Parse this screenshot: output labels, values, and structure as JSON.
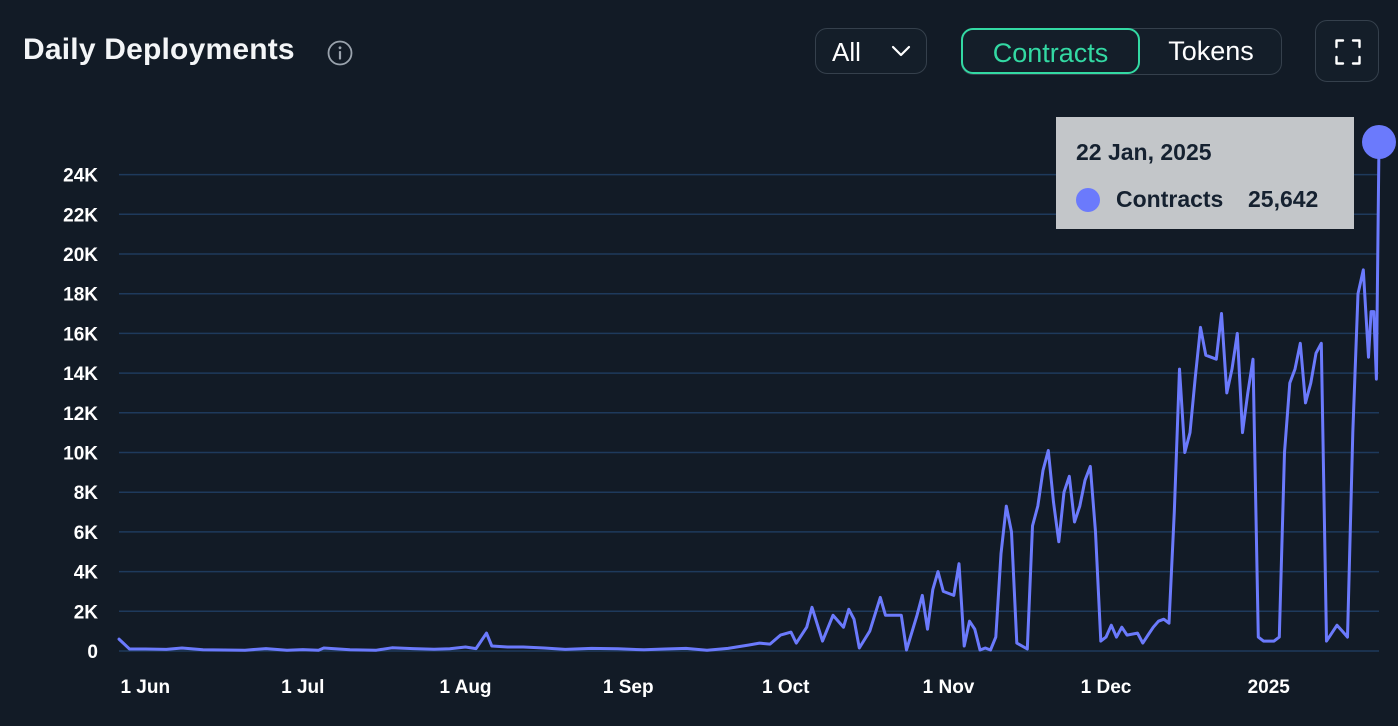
{
  "header": {
    "title": "Daily Deployments",
    "info_icon": "info-icon",
    "filter": {
      "selected": "All",
      "icon": "chevron-down-icon"
    },
    "toggle": {
      "active": "Contracts",
      "inactive": "Tokens"
    },
    "fullscreen_icon": "fullscreen-icon"
  },
  "tooltip": {
    "date": "22 Jan, 2025",
    "series": "Contracts",
    "value_label": "25,642"
  },
  "colors": {
    "background": "#121b26",
    "line": "#6b7afc",
    "grid": "#1e3a5c",
    "accent": "#33d9a3",
    "tooltip_bg": "#c3c6c9"
  },
  "chart_data": {
    "type": "line",
    "x_start": "2024-05-27",
    "x_end": "2025-01-22",
    "x_tick_labels": [
      {
        "date": "2024-06-01",
        "label": "1 Jun"
      },
      {
        "date": "2024-07-01",
        "label": "1 Jul"
      },
      {
        "date": "2024-08-01",
        "label": "1 Aug"
      },
      {
        "date": "2024-09-01",
        "label": "1 Sep"
      },
      {
        "date": "2024-10-01",
        "label": "1 Oct"
      },
      {
        "date": "2024-11-01",
        "label": "1 Nov"
      },
      {
        "date": "2024-12-01",
        "label": "1 Dec"
      },
      {
        "date": "2025-01-01",
        "label": "2025"
      }
    ],
    "y_ticks": [
      {
        "value": 0,
        "label": "0"
      },
      {
        "value": 2000,
        "label": "2K"
      },
      {
        "value": 4000,
        "label": "4K"
      },
      {
        "value": 6000,
        "label": "6K"
      },
      {
        "value": 8000,
        "label": "8K"
      },
      {
        "value": 10000,
        "label": "10K"
      },
      {
        "value": 12000,
        "label": "12K"
      },
      {
        "value": 14000,
        "label": "14K"
      },
      {
        "value": 16000,
        "label": "16K"
      },
      {
        "value": 18000,
        "label": "18K"
      },
      {
        "value": 20000,
        "label": "20K"
      },
      {
        "value": 22000,
        "label": "22K"
      },
      {
        "value": 24000,
        "label": "24K"
      }
    ],
    "ylim": [
      0,
      25642
    ],
    "grid": true,
    "legend": "none",
    "series": [
      {
        "name": "Contracts",
        "points": [
          [
            "2024-05-27",
            600
          ],
          [
            "2024-05-29",
            100
          ],
          [
            "2024-06-01",
            100
          ],
          [
            "2024-06-05",
            80
          ],
          [
            "2024-06-08",
            150
          ],
          [
            "2024-06-12",
            60
          ],
          [
            "2024-06-16",
            50
          ],
          [
            "2024-06-20",
            40
          ],
          [
            "2024-06-24",
            120
          ],
          [
            "2024-06-28",
            40
          ],
          [
            "2024-07-01",
            70
          ],
          [
            "2024-07-04",
            40
          ],
          [
            "2024-07-05",
            150
          ],
          [
            "2024-07-10",
            60
          ],
          [
            "2024-07-15",
            40
          ],
          [
            "2024-07-18",
            160
          ],
          [
            "2024-07-22",
            120
          ],
          [
            "2024-07-26",
            90
          ],
          [
            "2024-07-29",
            110
          ],
          [
            "2024-08-01",
            200
          ],
          [
            "2024-08-03",
            120
          ],
          [
            "2024-08-05",
            900
          ],
          [
            "2024-08-06",
            250
          ],
          [
            "2024-08-09",
            200
          ],
          [
            "2024-08-12",
            200
          ],
          [
            "2024-08-16",
            150
          ],
          [
            "2024-08-20",
            80
          ],
          [
            "2024-08-25",
            130
          ],
          [
            "2024-08-30",
            110
          ],
          [
            "2024-09-04",
            60
          ],
          [
            "2024-09-08",
            100
          ],
          [
            "2024-09-12",
            130
          ],
          [
            "2024-09-16",
            40
          ],
          [
            "2024-09-20",
            130
          ],
          [
            "2024-09-24",
            300
          ],
          [
            "2024-09-26",
            400
          ],
          [
            "2024-09-28",
            350
          ],
          [
            "2024-09-30",
            800
          ],
          [
            "2024-10-02",
            950
          ],
          [
            "2024-10-03",
            400
          ],
          [
            "2024-10-05",
            1200
          ],
          [
            "2024-10-06",
            2200
          ],
          [
            "2024-10-08",
            500
          ],
          [
            "2024-10-10",
            1800
          ],
          [
            "2024-10-12",
            1200
          ],
          [
            "2024-10-13",
            2100
          ],
          [
            "2024-10-14",
            1600
          ],
          [
            "2024-10-15",
            150
          ],
          [
            "2024-10-17",
            1000
          ],
          [
            "2024-10-19",
            2700
          ],
          [
            "2024-10-20",
            1800
          ],
          [
            "2024-10-23",
            1800
          ],
          [
            "2024-10-24",
            50
          ],
          [
            "2024-10-26",
            1800
          ],
          [
            "2024-10-27",
            2800
          ],
          [
            "2024-10-28",
            1100
          ],
          [
            "2024-10-29",
            3100
          ],
          [
            "2024-10-30",
            4000
          ],
          [
            "2024-10-31",
            3000
          ],
          [
            "2024-11-02",
            2800
          ],
          [
            "2024-11-03",
            4400
          ],
          [
            "2024-11-04",
            250
          ],
          [
            "2024-11-05",
            1500
          ],
          [
            "2024-11-06",
            1100
          ],
          [
            "2024-11-07",
            50
          ],
          [
            "2024-11-08",
            150
          ],
          [
            "2024-11-09",
            50
          ],
          [
            "2024-11-10",
            700
          ],
          [
            "2024-11-11",
            4900
          ],
          [
            "2024-11-12",
            7300
          ],
          [
            "2024-11-13",
            6000
          ],
          [
            "2024-11-14",
            400
          ],
          [
            "2024-11-16",
            100
          ],
          [
            "2024-11-17",
            6300
          ],
          [
            "2024-11-18",
            7300
          ],
          [
            "2024-11-19",
            9100
          ],
          [
            "2024-11-20",
            10100
          ],
          [
            "2024-11-21",
            7500
          ],
          [
            "2024-11-22",
            5500
          ],
          [
            "2024-11-23",
            8000
          ],
          [
            "2024-11-24",
            8800
          ],
          [
            "2024-11-25",
            6500
          ],
          [
            "2024-11-26",
            7300
          ],
          [
            "2024-11-27",
            8600
          ],
          [
            "2024-11-28",
            9300
          ],
          [
            "2024-11-29",
            6000
          ],
          [
            "2024-11-30",
            500
          ],
          [
            "2024-12-01",
            700
          ],
          [
            "2024-12-02",
            1300
          ],
          [
            "2024-12-03",
            700
          ],
          [
            "2024-12-04",
            1200
          ],
          [
            "2024-12-05",
            800
          ],
          [
            "2024-12-07",
            900
          ],
          [
            "2024-12-08",
            400
          ],
          [
            "2024-12-09",
            800
          ],
          [
            "2024-12-10",
            1200
          ],
          [
            "2024-12-11",
            1500
          ],
          [
            "2024-12-12",
            1600
          ],
          [
            "2024-12-13",
            1400
          ],
          [
            "2024-12-14",
            7000
          ],
          [
            "2024-12-15",
            14200
          ],
          [
            "2024-12-16",
            10000
          ],
          [
            "2024-12-17",
            11000
          ],
          [
            "2024-12-18",
            13800
          ],
          [
            "2024-12-19",
            16300
          ],
          [
            "2024-12-20",
            14900
          ],
          [
            "2024-12-22",
            14700
          ],
          [
            "2024-12-23",
            17000
          ],
          [
            "2024-12-24",
            13000
          ],
          [
            "2024-12-25",
            14200
          ],
          [
            "2024-12-26",
            16000
          ],
          [
            "2024-12-27",
            11000
          ],
          [
            "2024-12-28",
            13000
          ],
          [
            "2024-12-29",
            14700
          ],
          [
            "2024-12-30",
            700
          ],
          [
            "2024-12-31",
            500
          ],
          [
            "2025-01-02",
            500
          ],
          [
            "2025-01-03",
            700
          ],
          [
            "2025-01-04",
            10000
          ],
          [
            "2025-01-05",
            13500
          ],
          [
            "2025-01-06",
            14200
          ],
          [
            "2025-01-07",
            15500
          ],
          [
            "2025-01-08",
            12500
          ],
          [
            "2025-01-09",
            13500
          ],
          [
            "2025-01-10",
            15000
          ],
          [
            "2025-01-11",
            15500
          ],
          [
            "2025-01-12",
            500
          ],
          [
            "2025-01-13",
            900
          ],
          [
            "2025-01-14",
            1300
          ],
          [
            "2025-01-15",
            1000
          ],
          [
            "2025-01-16",
            700
          ],
          [
            "2025-01-17",
            11000
          ],
          [
            "2025-01-18",
            18000
          ],
          [
            "2025-01-19",
            19200
          ],
          [
            "2025-01-20",
            14800
          ],
          [
            "2025-01-20.5",
            17100
          ],
          [
            "2025-01-21",
            17100
          ],
          [
            "2025-01-21.5",
            13700
          ],
          [
            "2025-01-22",
            25642
          ]
        ]
      }
    ],
    "highlight": {
      "date": "2025-01-22",
      "value": 25642
    }
  }
}
